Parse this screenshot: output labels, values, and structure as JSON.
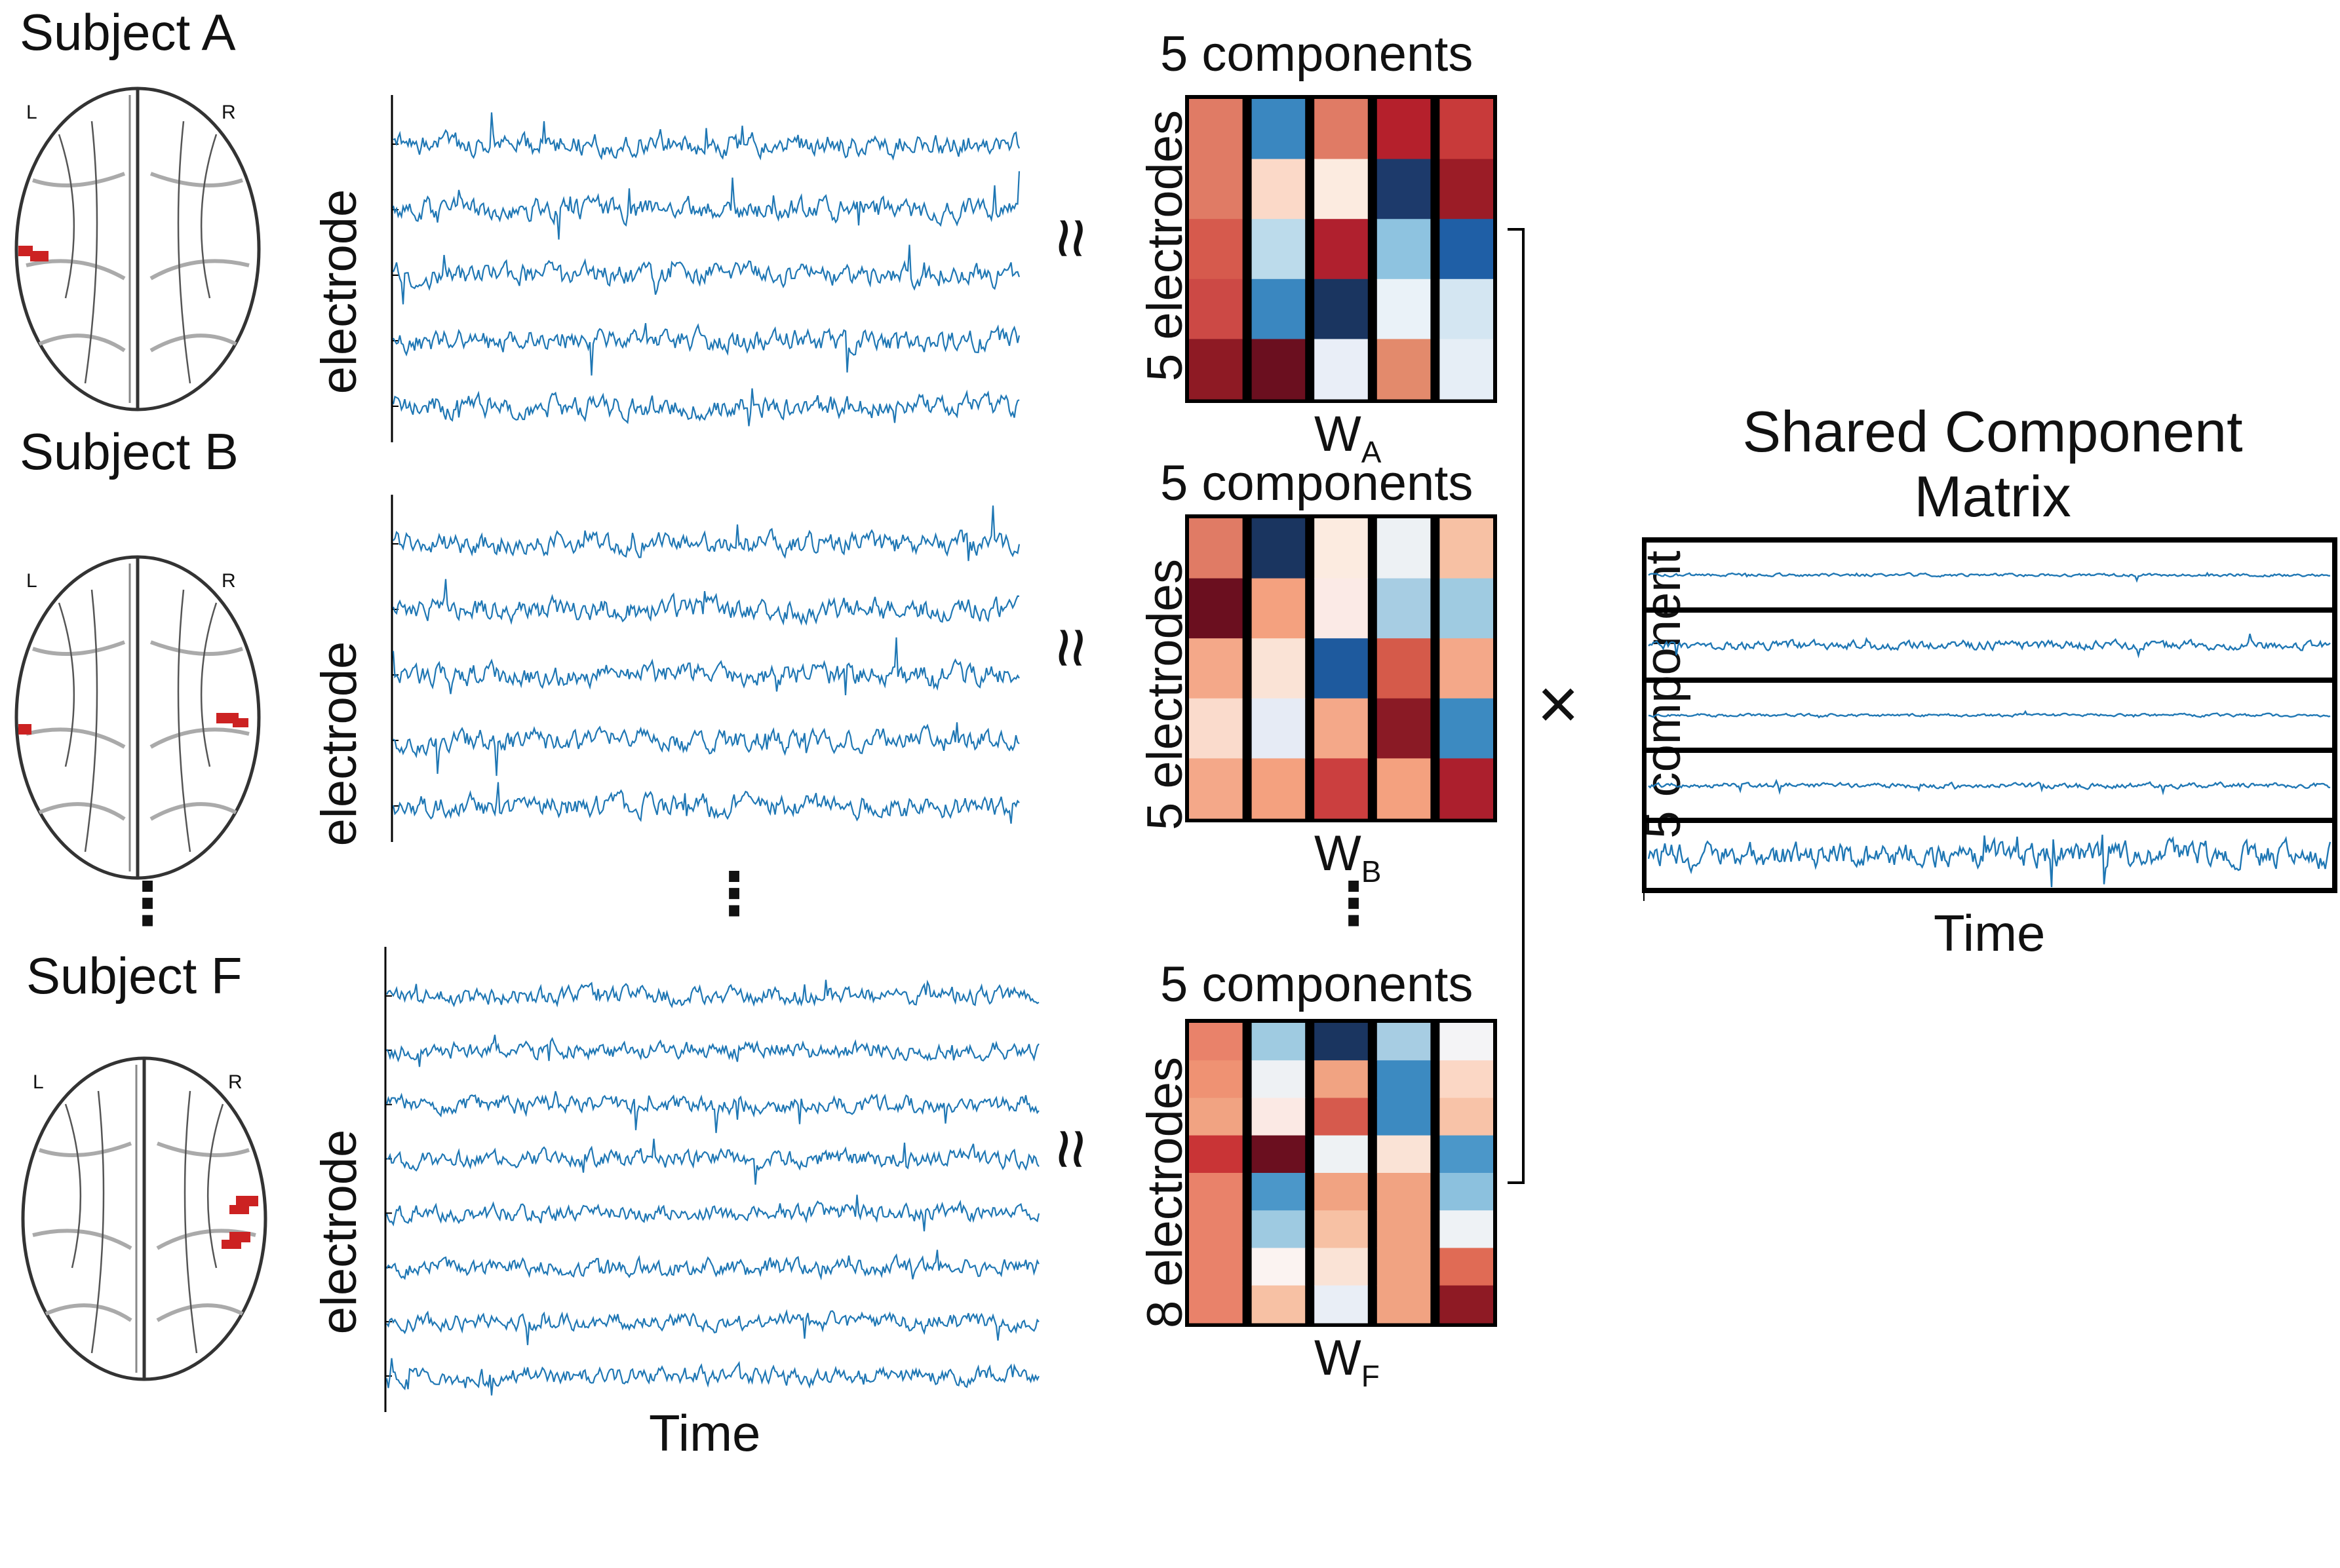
{
  "subjects": [
    {
      "id": "A",
      "title": "Subject A",
      "left_label": "L",
      "right_label": "R",
      "ylabel": "electrode",
      "traces": 5,
      "matrix_top_label": "5 components",
      "matrix_side_label": "5 electrodes",
      "matrix_name": "W",
      "matrix_sub": "A",
      "rows": 5
    },
    {
      "id": "B",
      "title": "Subject B",
      "left_label": "L",
      "right_label": "R",
      "ylabel": "electrode",
      "traces": 5,
      "matrix_top_label": "5 components",
      "matrix_side_label": "5 electrodes",
      "matrix_name": "W",
      "matrix_sub": "B",
      "rows": 5
    },
    {
      "id": "F",
      "title": "Subject F",
      "left_label": "L",
      "right_label": "R",
      "ylabel": "electrode",
      "traces": 8,
      "matrix_top_label": "5 components",
      "matrix_side_label": "8 electrodes",
      "matrix_name": "W",
      "matrix_sub": "F",
      "rows": 8
    }
  ],
  "time_label": "Time",
  "ellipsis": "⋮",
  "approx_symbol": "≈",
  "times_symbol": "×",
  "shared": {
    "title_line1": "Shared Component",
    "title_line2": "Matrix",
    "ylabel": "5 component",
    "xlabel": "Time",
    "components": 5
  },
  "colors": {
    "trace": "#1f77b4",
    "electrode_marker": "#cc2222",
    "frame": "#000000"
  },
  "matrices": {
    "A": [
      [
        "#e07b65",
        "#3a87c0",
        "#e07b65",
        "#b5202c",
        "#c83a3a"
      ],
      [
        "#e07b65",
        "#fbd9c8",
        "#fcebe0",
        "#1d3a6b",
        "#9b1c26"
      ],
      [
        "#d65a4d",
        "#bcdbeb",
        "#b0202e",
        "#8ec3e0",
        "#1f5fa6"
      ],
      [
        "#cc4945",
        "#3a87c0",
        "#1a3560",
        "#eaf2f8",
        "#d4e6f2"
      ],
      [
        "#8e1a24",
        "#6b0f1f",
        "#e9eef7",
        "#e38a6c",
        "#e6eef6"
      ]
    ],
    "B": [
      [
        "#e07b65",
        "#1a3560",
        "#fcebe0",
        "#edf1f4",
        "#f7c1a4"
      ],
      [
        "#6b0f1f",
        "#f4a17f",
        "#fbeae6",
        "#a7cde3",
        "#9fcbe1"
      ],
      [
        "#f4a889",
        "#fae3d6",
        "#1e5a9e",
        "#d55a4a",
        "#f4a889"
      ],
      [
        "#fadbcc",
        "#e6ebf5",
        "#f4a889",
        "#8a1a25",
        "#3c8ac1"
      ],
      [
        "#f4a889",
        "#f4a17f",
        "#cb3f3f",
        "#f4a17f",
        "#ac1f2d"
      ]
    ],
    "F": [
      [
        "#e9826a",
        "#9fcbe1",
        "#1a3560",
        "#a7cde3",
        "#f4f4f6"
      ],
      [
        "#ef9273",
        "#eef1f4",
        "#f1a382",
        "#3c8ac1",
        "#fbd7c5"
      ],
      [
        "#f1a382",
        "#fbe9e4",
        "#d65a4d",
        "#3c8ac1",
        "#f8c3a8"
      ],
      [
        "#c93436",
        "#6b0f1f",
        "#eef2f4",
        "#fae3d6",
        "#4b97c9"
      ],
      [
        "#e9826a",
        "#4b97c9",
        "#f1a382",
        "#f1a382",
        "#8cc1de"
      ],
      [
        "#e9826a",
        "#9ecae1",
        "#f7c1a4",
        "#f1a382",
        "#eef2f5"
      ],
      [
        "#e9826a",
        "#fbf3f1",
        "#fae3d6",
        "#f1a382",
        "#e06b55"
      ],
      [
        "#e9826a",
        "#f7c1a4",
        "#e9eef6",
        "#f1a382",
        "#8e1a24"
      ]
    ]
  }
}
